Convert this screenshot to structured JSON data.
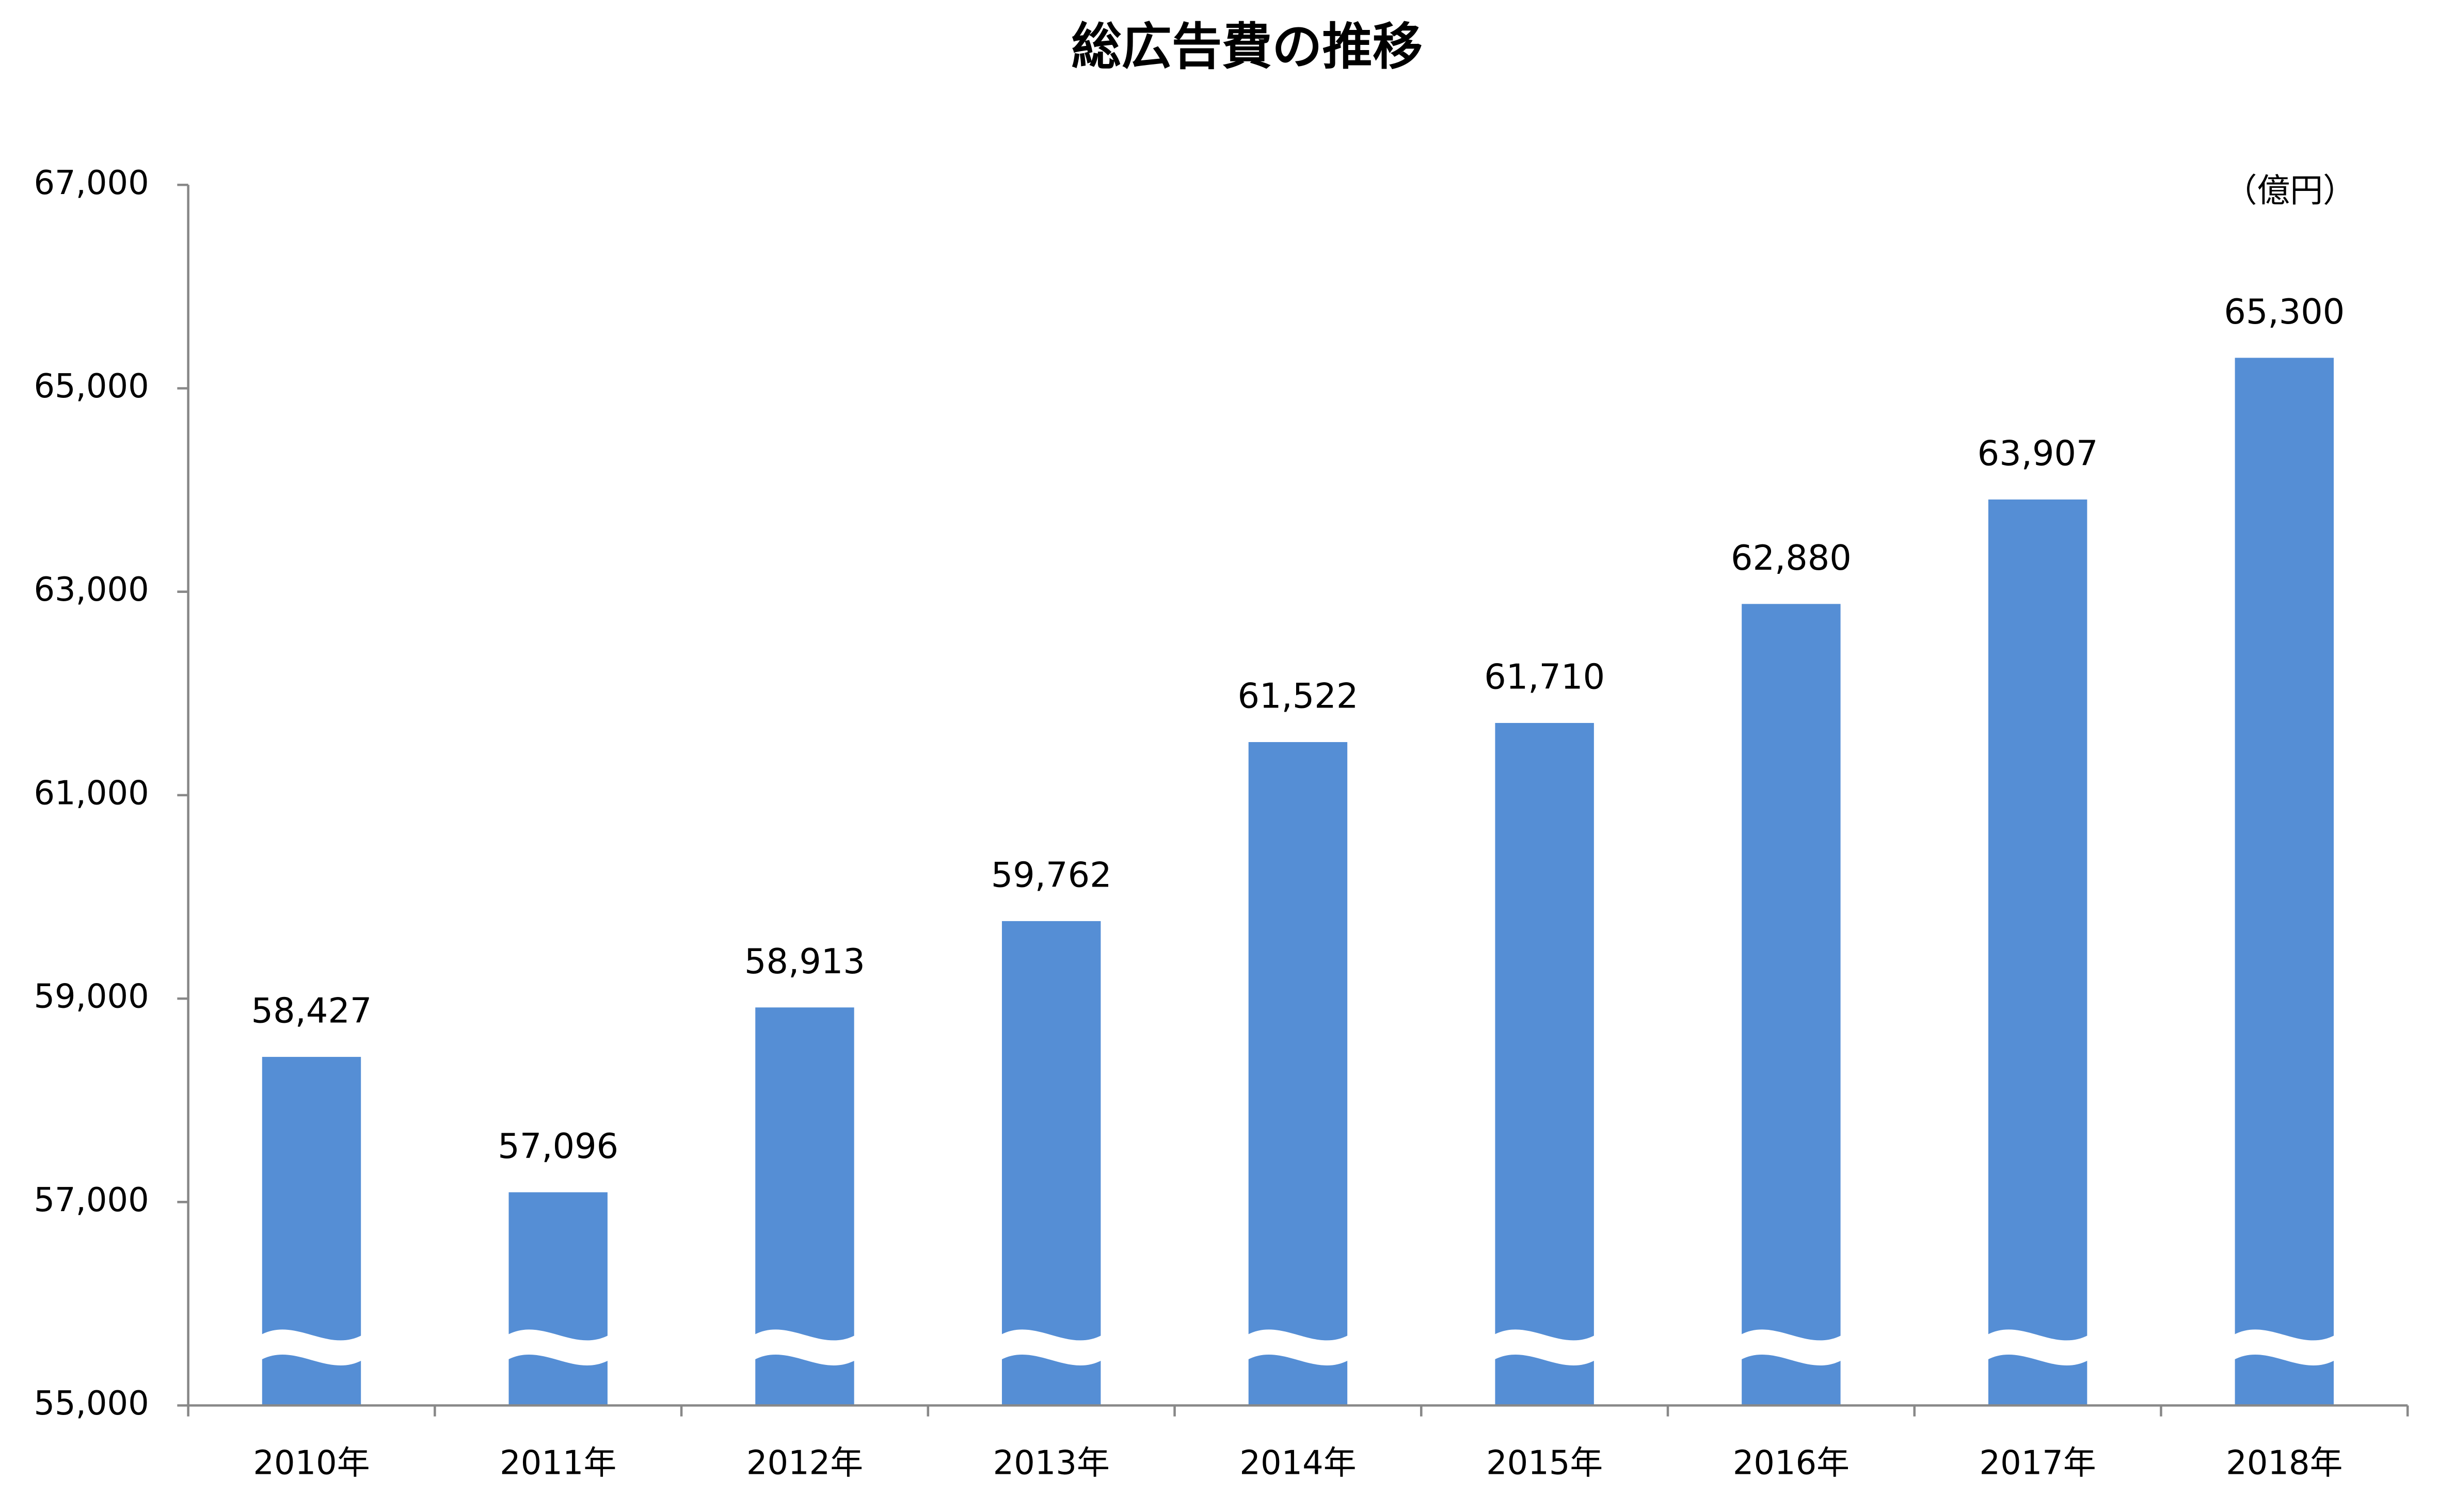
{
  "chart_data": {
    "type": "bar",
    "title": "総広告費の推移",
    "unit_label": "（億円）",
    "categories": [
      "2010年",
      "2011年",
      "2012年",
      "2013年",
      "2014年",
      "2015年",
      "2016年",
      "2017年",
      "2018年"
    ],
    "values": [
      58427,
      57096,
      58913,
      59762,
      61522,
      61710,
      62880,
      63907,
      65300
    ],
    "value_labels": [
      "58,427",
      "57,096",
      "58,913",
      "59,762",
      "61,522",
      "61,710",
      "62,880",
      "63,907",
      "65,300"
    ],
    "color": "#558ed5",
    "ylim": [
      55000,
      67000
    ],
    "yticks": [
      {
        "value": 55000,
        "label": "55,000"
      },
      {
        "value": 57000,
        "label": "57,000"
      },
      {
        "value": 59000,
        "label": "59,000"
      },
      {
        "value": 61000,
        "label": "61,000"
      },
      {
        "value": 63000,
        "label": "63,000"
      },
      {
        "value": 65000,
        "label": "65,000"
      },
      {
        "value": 67000,
        "label": "67,000"
      }
    ],
    "grid": false
  }
}
